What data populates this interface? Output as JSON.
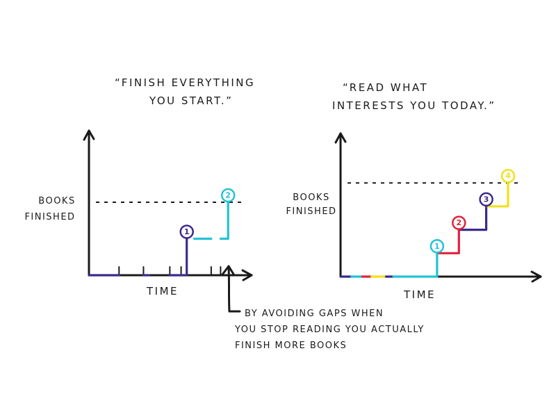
{
  "chart_data": [
    {
      "type": "line",
      "title": "“FINISH EVERYTHING YOU START.”",
      "title_lines": [
        "“FINISH EVERYTHING",
        "YOU START.”"
      ],
      "xlabel": "TIME",
      "ylabel": "BOOKS FINISHED",
      "ylabel_lines": [
        "BOOKS",
        "FINISHED"
      ],
      "ylim": [
        0,
        4
      ],
      "grid": false,
      "reference_level": 2,
      "segments": [
        {
          "color": "#3b2a8c",
          "points": [
            [
              0,
              0
            ],
            [
              1.6,
              0
            ]
          ]
        },
        {
          "color": "#3b2a8c",
          "points": [
            [
              2.9,
              0
            ],
            [
              3.2,
              0
            ]
          ]
        },
        {
          "color": "#3b2a8c",
          "points": [
            [
              4.3,
              0
            ],
            [
              5.2,
              0
            ],
            [
              5.2,
              1
            ]
          ]
        },
        {
          "color": "#22c2d6",
          "points": [
            [
              5.6,
              1
            ],
            [
              6.5,
              1
            ]
          ]
        },
        {
          "color": "#22c2d6",
          "points": [
            [
              7.0,
              1
            ],
            [
              7.4,
              1
            ],
            [
              7.4,
              2
            ]
          ]
        }
      ],
      "ticks_x": [
        1.6,
        2.9,
        4.3,
        4.9,
        6.5,
        7.0
      ],
      "markers": [
        {
          "x": 5.2,
          "y": 1,
          "label": "1",
          "color": "#3b2a8c"
        },
        {
          "x": 7.4,
          "y": 2,
          "label": "2",
          "color": "#22c2d6"
        }
      ],
      "xlim": [
        0,
        8.5
      ],
      "annotation": {
        "lines": [
          "BY AVOIDING GAPS WHEN",
          "YOU STOP READING YOU ACTUALLY",
          "FINISH MORE BOOKS"
        ]
      }
    },
    {
      "type": "line",
      "title": "“READ WHAT INTERESTS YOU TODAY.”",
      "title_lines": [
        "“READ WHAT",
        "INTERESTS YOU TODAY.”"
      ],
      "xlabel": "TIME",
      "ylabel": "BOOKS FINISHED",
      "ylabel_lines": [
        "BOOKS",
        "FINISHED"
      ],
      "ylim": [
        0,
        4.6
      ],
      "xlim": [
        0,
        10
      ],
      "grid": false,
      "reference_level": 4,
      "segments": [
        {
          "color": "#3b2a8c",
          "points": [
            [
              0,
              0
            ],
            [
              0.6,
              0
            ]
          ]
        },
        {
          "color": "#22c2d6",
          "points": [
            [
              0.6,
              0
            ],
            [
              1.2,
              0
            ]
          ]
        },
        {
          "color": "#e0223a",
          "points": [
            [
              1.2,
              0
            ],
            [
              1.7,
              0
            ]
          ]
        },
        {
          "color": "#f2e11a",
          "points": [
            [
              1.7,
              0
            ],
            [
              2.5,
              0
            ]
          ]
        },
        {
          "color": "#3b2a8c",
          "points": [
            [
              2.5,
              0
            ],
            [
              2.9,
              0
            ]
          ]
        },
        {
          "color": "#22c2d6",
          "points": [
            [
              2.9,
              0
            ],
            [
              5.3,
              0
            ],
            [
              5.3,
              1
            ]
          ]
        },
        {
          "color": "#e0223a",
          "points": [
            [
              5.3,
              1
            ],
            [
              6.5,
              1
            ],
            [
              6.5,
              2
            ]
          ]
        },
        {
          "color": "#3b2a8c",
          "points": [
            [
              6.5,
              2
            ],
            [
              8.0,
              2
            ],
            [
              8.0,
              3
            ]
          ]
        },
        {
          "color": "#f2e11a",
          "points": [
            [
              8.0,
              3
            ],
            [
              9.2,
              3
            ],
            [
              9.2,
              4
            ]
          ]
        }
      ],
      "markers": [
        {
          "x": 5.3,
          "y": 1,
          "label": "1",
          "color": "#22c2d6"
        },
        {
          "x": 6.5,
          "y": 2,
          "label": "2",
          "color": "#e0223a"
        },
        {
          "x": 8.0,
          "y": 3,
          "label": "3",
          "color": "#3b2a8c"
        },
        {
          "x": 9.2,
          "y": 4,
          "label": "4",
          "color": "#f2e11a"
        }
      ]
    }
  ]
}
